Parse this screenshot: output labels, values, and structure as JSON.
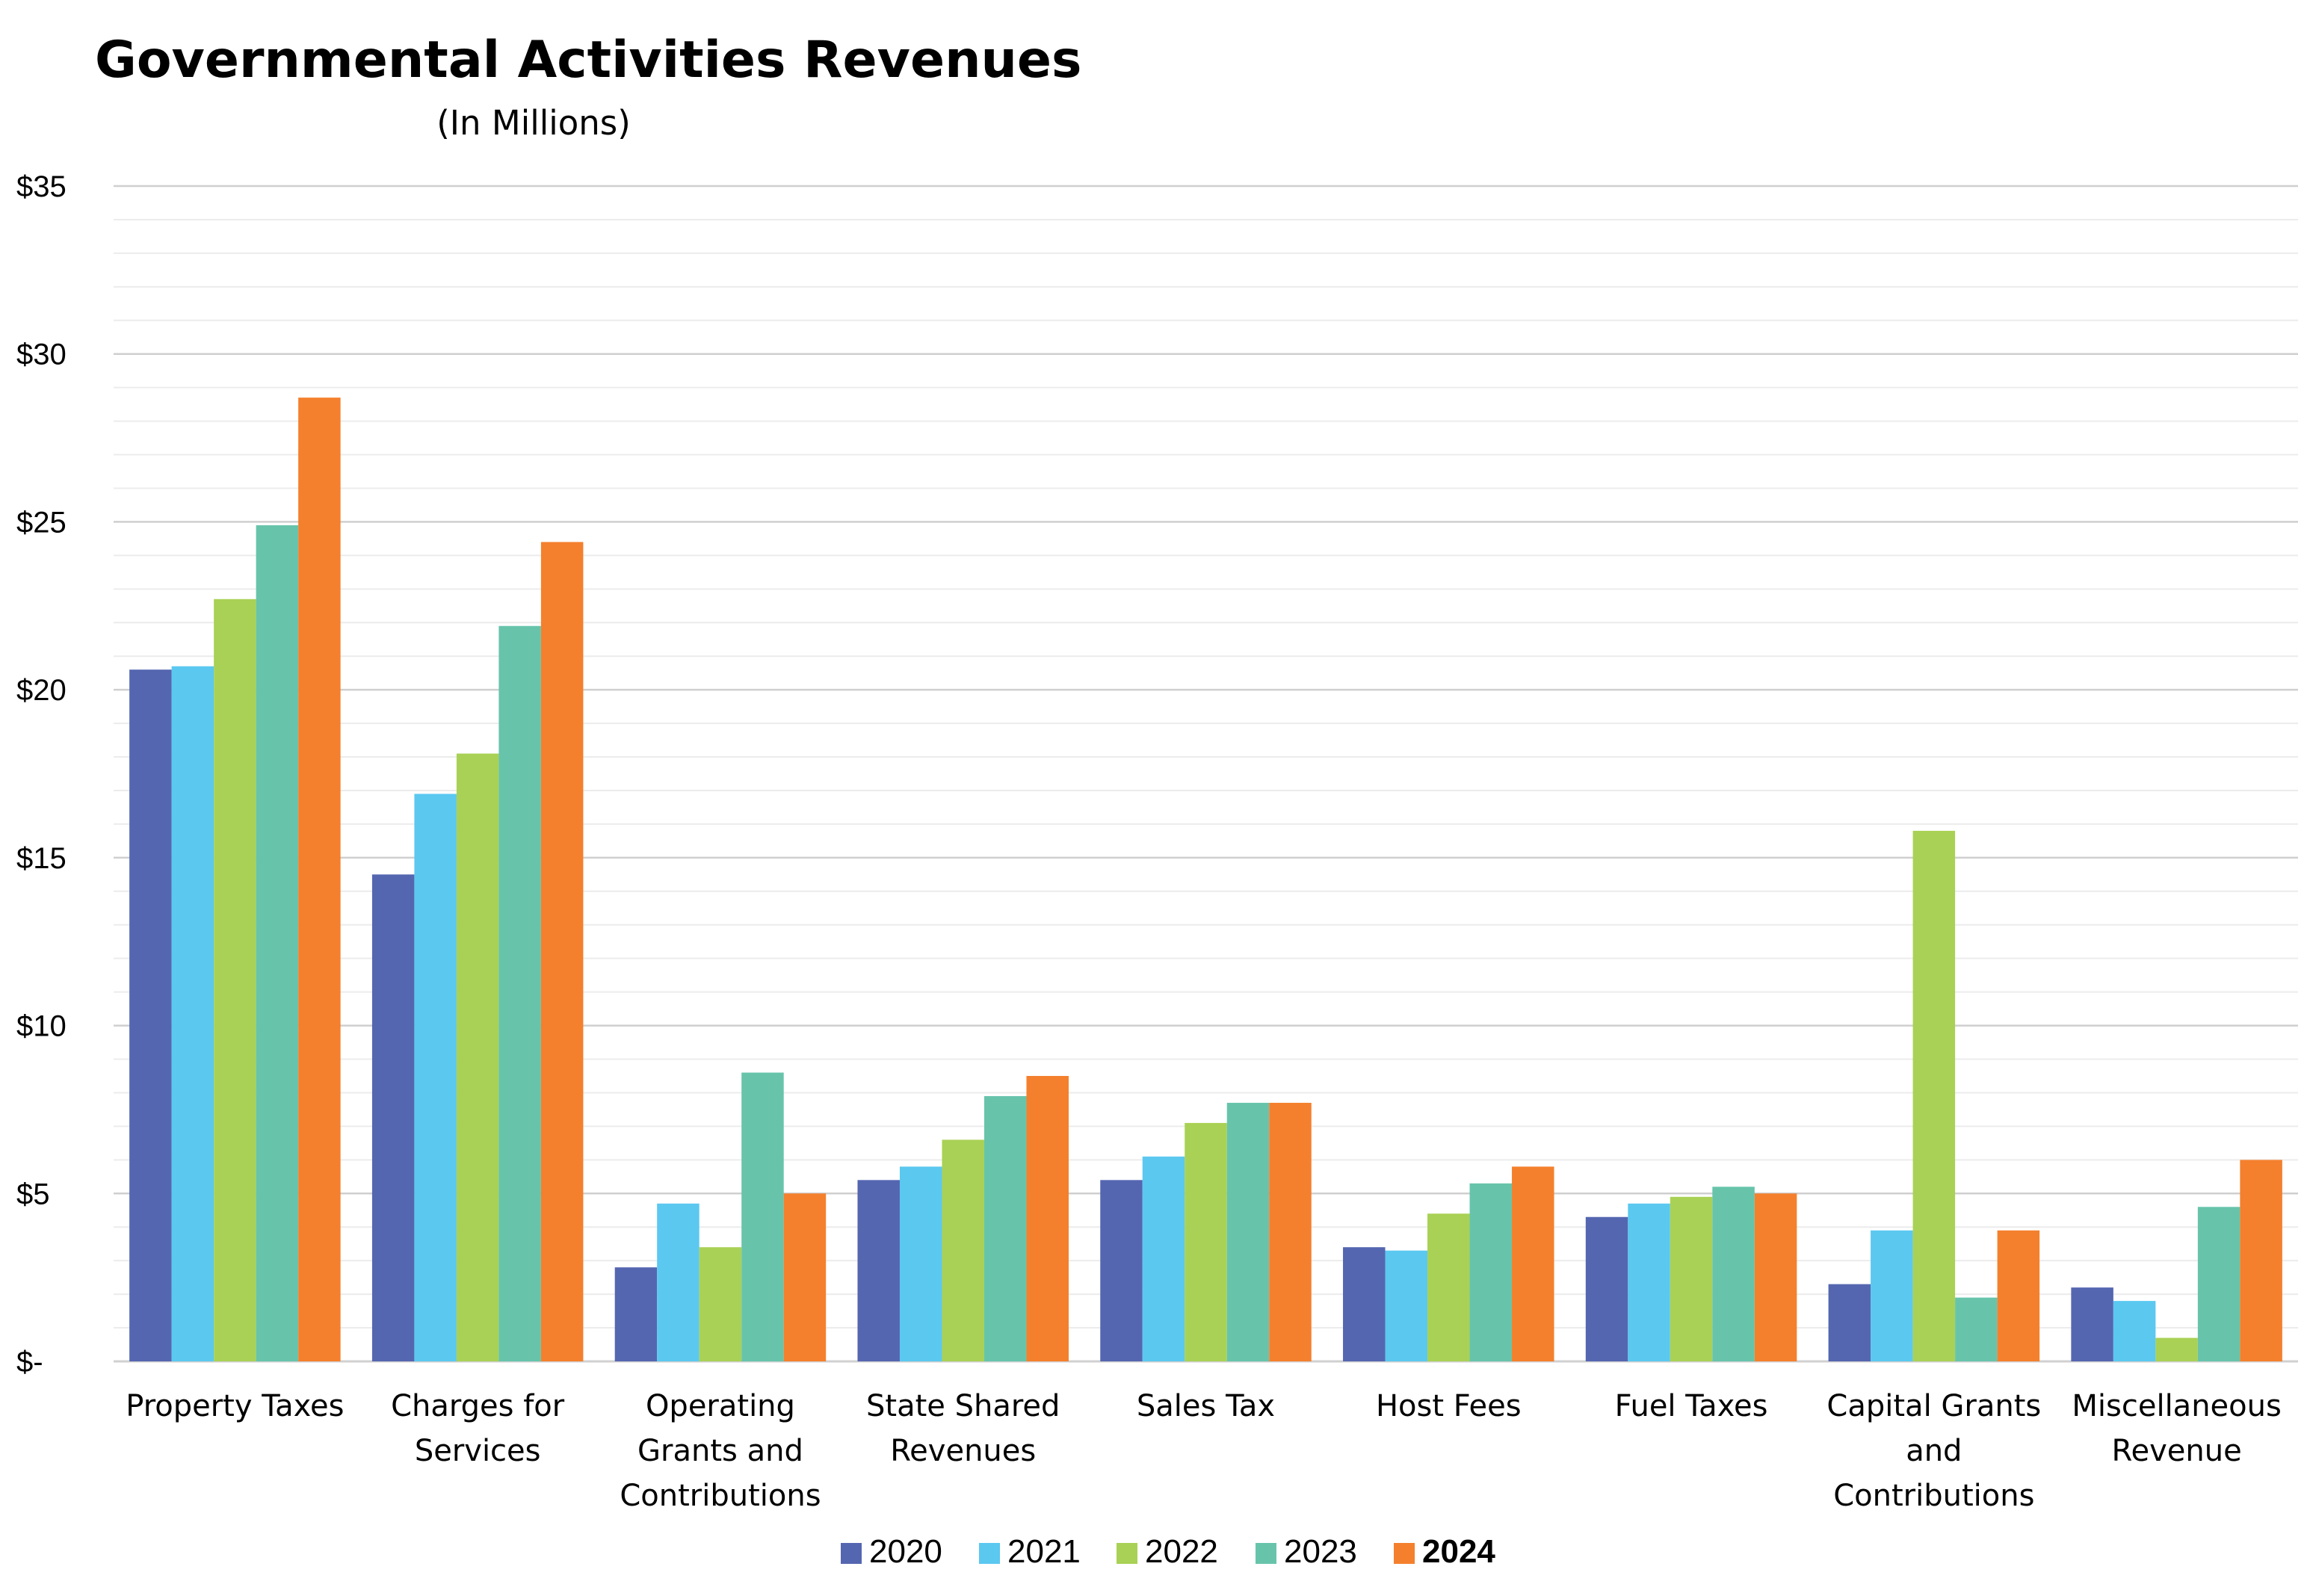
{
  "chart_data": {
    "type": "bar",
    "title": "Governmental Activities Revenues",
    "subtitle": "(In Millions)",
    "ylim": [
      0,
      35
    ],
    "y_ticks": [
      0,
      5,
      10,
      15,
      20,
      25,
      30,
      35
    ],
    "y_tick_labels": [
      "$-",
      "$5",
      "$10",
      "$15",
      "$20",
      "$25",
      "$30",
      "$35"
    ],
    "grid": true,
    "legend_position": "bottom",
    "categories": [
      [
        "Property Taxes"
      ],
      [
        "Charges for",
        "Services"
      ],
      [
        "Operating",
        "Grants and",
        "Contributions"
      ],
      [
        "State Shared",
        "Revenues"
      ],
      [
        "Sales Tax"
      ],
      [
        "Host Fees"
      ],
      [
        "Fuel Taxes"
      ],
      [
        "Capital Grants",
        "and",
        "Contributions"
      ],
      [
        "Miscellaneous",
        "Revenue"
      ]
    ],
    "series": [
      {
        "name": "2020",
        "color": "#5566b0",
        "bold": false,
        "values": [
          20.6,
          14.5,
          2.8,
          5.4,
          5.4,
          3.4,
          4.3,
          2.3,
          2.2
        ]
      },
      {
        "name": "2021",
        "color": "#5bc8f0",
        "bold": false,
        "values": [
          20.7,
          16.9,
          4.7,
          5.8,
          6.1,
          3.3,
          4.7,
          3.9,
          1.8
        ]
      },
      {
        "name": "2022",
        "color": "#a9d155",
        "bold": false,
        "values": [
          22.7,
          18.1,
          3.4,
          6.6,
          7.1,
          4.4,
          4.9,
          15.8,
          0.7
        ]
      },
      {
        "name": "2023",
        "color": "#67c4ab",
        "bold": false,
        "values": [
          24.9,
          21.9,
          8.6,
          7.9,
          7.7,
          5.3,
          5.2,
          1.9,
          4.6
        ]
      },
      {
        "name": "2024",
        "color": "#f4802d",
        "bold": true,
        "values": [
          28.7,
          24.4,
          5.0,
          8.5,
          7.7,
          5.8,
          5.0,
          3.9,
          6.0
        ]
      }
    ]
  }
}
